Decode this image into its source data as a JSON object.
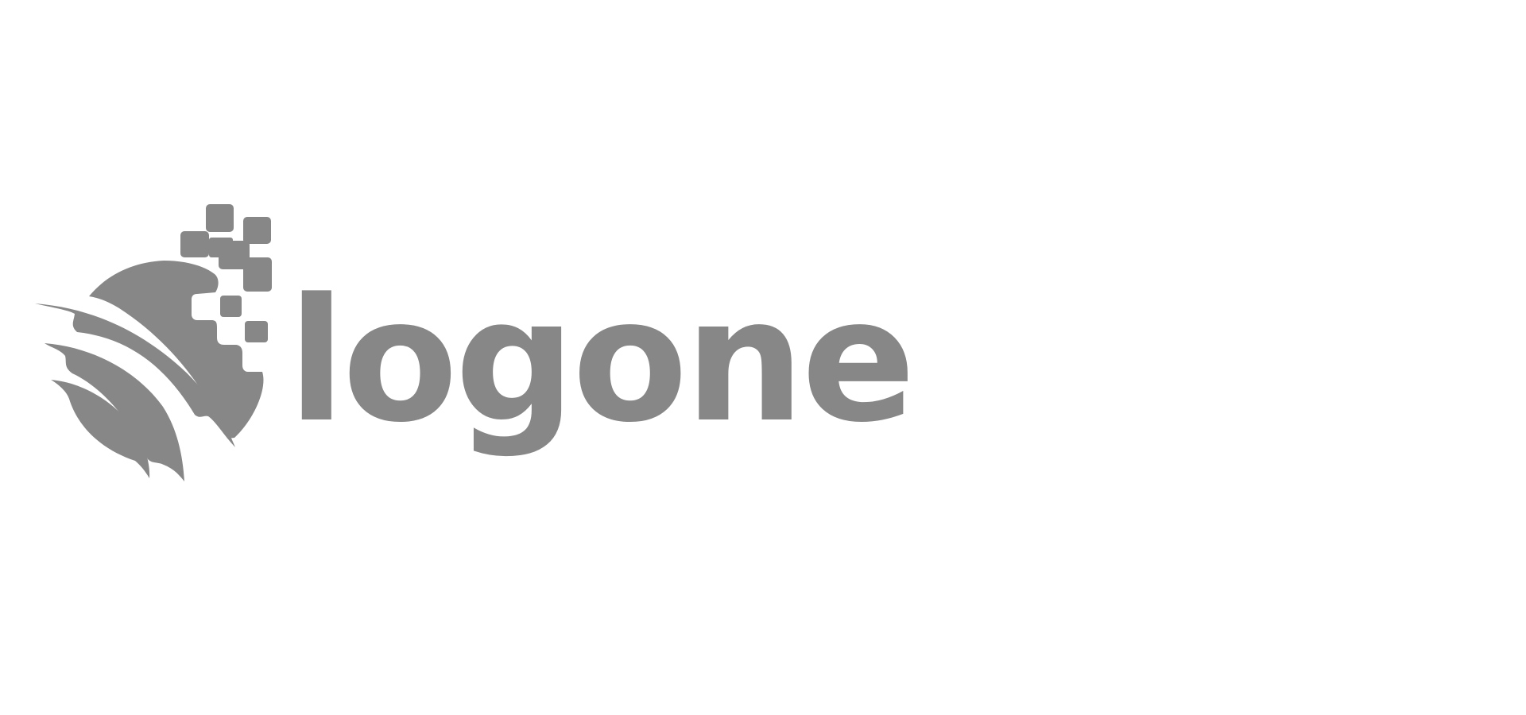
{
  "brand": {
    "wordmark": "logone",
    "color": "#878787",
    "background": "#ffffff"
  },
  "icons": {
    "logo_mark": "globe-swoosh-pixel-logo-icon"
  }
}
